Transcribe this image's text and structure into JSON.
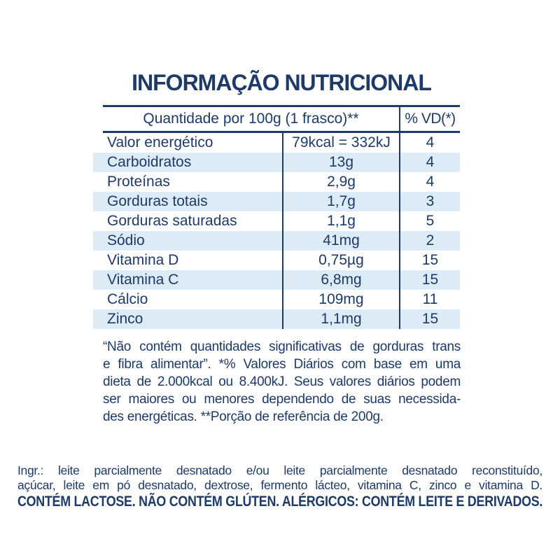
{
  "title": "INFORMAÇÃO NUTRICIONAL",
  "colors": {
    "navy_text": "#1d3a68",
    "stripe_blue": "#dcebf6",
    "background": "#ffffff"
  },
  "table": {
    "header": {
      "quantity_label": "Quantidade por 100g (1 frasco)**",
      "dv_label": "% VD(*)"
    },
    "rows": [
      {
        "nutrient": "Valor energético",
        "amount": "79kcal = 332kJ",
        "dv": "4"
      },
      {
        "nutrient": "Carboidratos",
        "amount": "13g",
        "dv": "4"
      },
      {
        "nutrient": "Proteínas",
        "amount": "2,9g",
        "dv": "4"
      },
      {
        "nutrient": "Gorduras totais",
        "amount": "1,7g",
        "dv": "3"
      },
      {
        "nutrient": "Gorduras saturadas",
        "amount": "1,1g",
        "dv": "5"
      },
      {
        "nutrient": "Sódio",
        "amount": "41mg",
        "dv": "2"
      },
      {
        "nutrient": "Vitamina D",
        "amount": "0,75µg",
        "dv": "15"
      },
      {
        "nutrient": "Vitamina C",
        "amount": "6,8mg",
        "dv": "15"
      },
      {
        "nutrient": "Cálcio",
        "amount": "109mg",
        "dv": "11"
      },
      {
        "nutrient": "Zinco",
        "amount": "1,1mg",
        "dv": "15"
      }
    ]
  },
  "footnote": {
    "lines": [
      "“Não contém quantidades significativas de gorduras trans",
      "e fibra alimentar”. *% Valores Diários com base em uma",
      "dieta de 2.000kcal ou 8.400kJ. Seus valores diários podem",
      "ser maiores ou menores dependendo de suas necessida-",
      "des energéticas. **Porção de referência de 200g."
    ]
  },
  "ingredients": {
    "lines": [
      "Ingr.: leite parcialmente desnatado e/ou leite parcialmente desnatado reconstituído,",
      "açúcar, leite em pó desnatado, dextrose, fermento lácteo, vitamina C, zinco e vitamina D."
    ],
    "allergen_line": "CONTÉM LACTOSE. NÃO CONTÉM GLÚTEN. ALÉRGICOS: CONTÉM LEITE E DERIVADOS."
  }
}
